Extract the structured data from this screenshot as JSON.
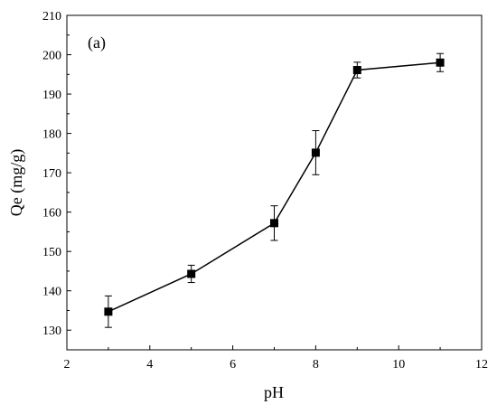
{
  "chart_data": {
    "type": "line",
    "title": "",
    "xlabel": "pH",
    "ylabel": "Qe (mg/g)",
    "annotation": "(a)",
    "xlim": [
      2,
      12
    ],
    "ylim": [
      125,
      210
    ],
    "x_ticks": [
      2,
      4,
      6,
      8,
      10,
      12
    ],
    "y_ticks": [
      130,
      140,
      150,
      160,
      170,
      180,
      190,
      200,
      210
    ],
    "grid": false,
    "legend": "none",
    "marker": "square",
    "line_color": "#000000",
    "series": [
      {
        "x": [
          3,
          5,
          7,
          8,
          9,
          11
        ],
        "y": [
          134.7,
          144.3,
          157.2,
          175.1,
          196.1,
          198.0
        ],
        "yerr": [
          4.0,
          2.2,
          4.4,
          5.6,
          2.0,
          2.3
        ]
      }
    ]
  }
}
